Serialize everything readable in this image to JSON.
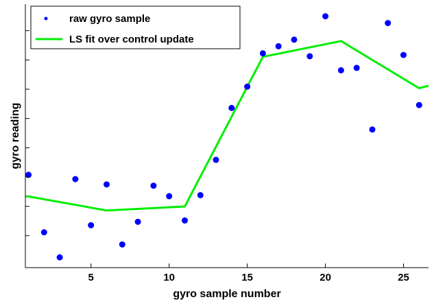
{
  "chart_data": {
    "type": "scatter",
    "title": "",
    "xlabel": "gyro sample number",
    "ylabel": "gyro reading",
    "xlim": [
      0.8,
      26.6
    ],
    "ylim": [
      0,
      1
    ],
    "x_ticks": [
      5,
      10,
      15,
      20,
      25
    ],
    "y_tick_count": 8,
    "y_tick_labels_shown": false,
    "grid": false,
    "legend_position": "top-left",
    "series": [
      {
        "name": "raw gyro sample",
        "kind": "scatter",
        "color": "#0000ff",
        "x": [
          1,
          2,
          3,
          4,
          5,
          6,
          7,
          8,
          9,
          10,
          11,
          12,
          13,
          14,
          15,
          16,
          17,
          18,
          19,
          20,
          21,
          22,
          23,
          24,
          25,
          26
        ],
        "y": [
          0.352,
          0.134,
          0.039,
          0.336,
          0.161,
          0.316,
          0.088,
          0.174,
          0.311,
          0.271,
          0.179,
          0.275,
          0.409,
          0.606,
          0.687,
          0.813,
          0.84,
          0.865,
          0.802,
          0.954,
          0.749,
          0.758,
          0.524,
          0.928,
          0.807,
          0.617
        ]
      },
      {
        "name": "LS fit over control update",
        "kind": "line",
        "color": "#00ee00",
        "x": [
          0.8,
          1,
          6,
          11,
          16,
          21,
          26,
          26.6
        ],
        "y": [
          0.27,
          0.27,
          0.217,
          0.232,
          0.8,
          0.86,
          0.681,
          0.69
        ]
      }
    ]
  }
}
